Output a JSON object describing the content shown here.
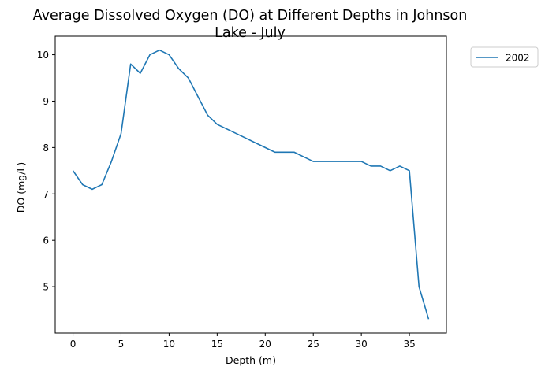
{
  "chart_data": {
    "type": "line",
    "title": "Average Dissolved Oxygen (DO) at Different Depths in Johnson\nLake - July",
    "xlabel": "Depth (m)",
    "ylabel": "DO (mg/L)",
    "xlim": [
      -1.85,
      38.85
    ],
    "ylim": [
      4.0,
      10.4
    ],
    "xticks": [
      0,
      5,
      10,
      15,
      20,
      25,
      30,
      35
    ],
    "yticks": [
      5,
      6,
      7,
      8,
      9,
      10
    ],
    "grid": false,
    "legend_position": "outside-top-right",
    "series": [
      {
        "name": "2002",
        "color": "#1f77b4",
        "x": [
          0,
          1,
          2,
          3,
          4,
          5,
          6,
          7,
          8,
          9,
          10,
          11,
          12,
          13,
          14,
          15,
          16,
          17,
          18,
          19,
          20,
          21,
          22,
          23,
          24,
          25,
          26,
          27,
          28,
          29,
          30,
          31,
          32,
          33,
          34,
          35,
          36,
          37
        ],
        "y": [
          7.5,
          7.2,
          7.1,
          7.2,
          7.7,
          8.3,
          9.8,
          9.6,
          10.0,
          10.1,
          10.0,
          9.7,
          9.5,
          9.1,
          8.7,
          8.5,
          8.4,
          8.3,
          8.2,
          8.1,
          8.0,
          7.9,
          7.9,
          7.9,
          7.8,
          7.7,
          7.7,
          7.7,
          7.7,
          7.7,
          7.7,
          7.6,
          7.6,
          7.5,
          7.6,
          7.5,
          5.0,
          4.3
        ]
      }
    ]
  }
}
